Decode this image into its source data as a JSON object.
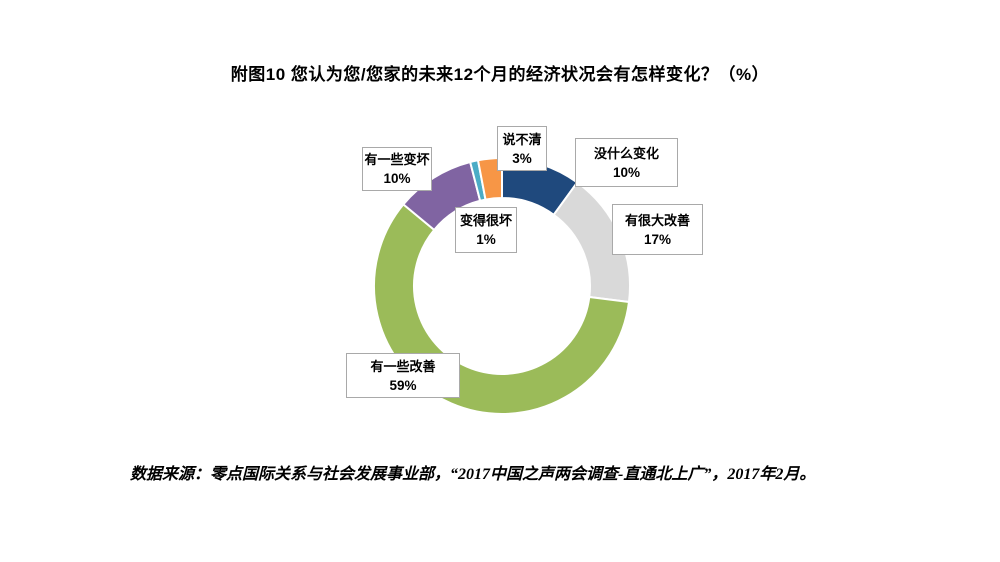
{
  "title": "附图10 您认为您/您家的未来12个月的经济状况会有怎样变化？（%）",
  "source": "数据来源：零点国际关系与社会发展事业部，“2017中国之声两会调查-直通北上广”，2017年2月。",
  "chart_data": {
    "type": "pie",
    "subtype": "donut",
    "title": "附图10 您认为您/您家的未来12个月的经济状况会有怎样变化？（%）",
    "unit": "%",
    "start_angle_deg": 0,
    "direction": "clockwise",
    "hole_ratio": 0.69,
    "legend_position": "none",
    "grid": false,
    "segments": [
      {
        "label": "没什么变化",
        "value": 10,
        "pct": "10%",
        "color": "#1F497D"
      },
      {
        "label": "有很大改善",
        "value": 17,
        "pct": "17%",
        "color": "#D9D9D9"
      },
      {
        "label": "有一些改善",
        "value": 59,
        "pct": "59%",
        "color": "#9BBB59"
      },
      {
        "label": "有一些变坏",
        "value": 10,
        "pct": "10%",
        "color": "#8064A2"
      },
      {
        "label": "变得很坏",
        "value": 1,
        "pct": "1%",
        "color": "#4BACC6"
      },
      {
        "label": "说不清",
        "value": 3,
        "pct": "3%",
        "color": "#F79646"
      }
    ]
  }
}
